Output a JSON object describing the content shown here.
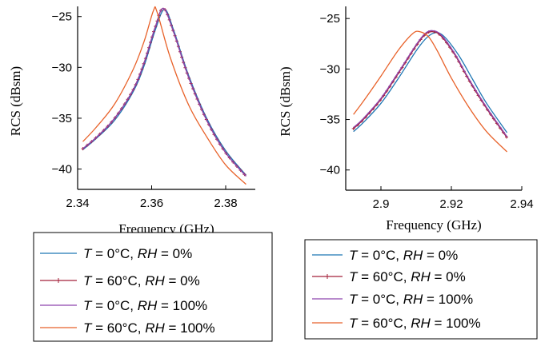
{
  "chart_data": [
    {
      "type": "line",
      "xlabel": "Frequency (GHz)",
      "ylabel": "RCS (dBsm)",
      "xlim": [
        2.34,
        2.388
      ],
      "ylim": [
        -42.0,
        -24.0
      ],
      "xticks": [
        2.34,
        2.36,
        2.38
      ],
      "xtick_labels": [
        "2.34",
        "2.36",
        "2.38"
      ],
      "yticks": [
        -40,
        -35,
        -30,
        -25
      ],
      "ytick_labels": [
        "−40",
        "−35",
        "−30",
        "−25"
      ],
      "grid": false,
      "legend_position": "below",
      "series": [
        {
          "name": "T = 0°C, RH = 0%",
          "color": "#1f77b4",
          "marker": "none",
          "x": [
            2.3414,
            2.345,
            2.35,
            2.355,
            2.358,
            2.361,
            2.3635,
            2.366,
            2.37,
            2.375,
            2.38,
            2.3855
          ],
          "y": [
            -38.1,
            -37.0,
            -35.2,
            -32.4,
            -29.8,
            -26.3,
            -24.3,
            -26.4,
            -30.8,
            -35.1,
            -38.2,
            -40.6
          ]
        },
        {
          "name": "T = 60°C, RH = 0%",
          "color": "#a3203a",
          "marker": "plus",
          "x": [
            2.3414,
            2.345,
            2.35,
            2.355,
            2.358,
            2.361,
            2.3632,
            2.366,
            2.37,
            2.375,
            2.38,
            2.3855
          ],
          "y": [
            -38.0,
            -36.9,
            -35.0,
            -32.2,
            -29.5,
            -26.0,
            -24.2,
            -26.6,
            -31.0,
            -35.3,
            -38.4,
            -40.7
          ]
        },
        {
          "name": "T = 0°C, RH = 100%",
          "color": "#8e44ad",
          "marker": "none",
          "x": [
            2.3414,
            2.345,
            2.35,
            2.355,
            2.358,
            2.361,
            2.3632,
            2.366,
            2.37,
            2.375,
            2.38,
            2.3855
          ],
          "y": [
            -38.0,
            -36.9,
            -35.0,
            -32.2,
            -29.5,
            -26.0,
            -24.2,
            -26.6,
            -31.0,
            -35.3,
            -38.4,
            -40.7
          ]
        },
        {
          "name": "T = 60°C, RH = 100%",
          "color": "#e8622a",
          "marker": "none",
          "x": [
            2.3414,
            2.345,
            2.35,
            2.355,
            2.358,
            2.3605,
            2.3615,
            2.365,
            2.37,
            2.375,
            2.38,
            2.3855
          ],
          "y": [
            -37.3,
            -35.9,
            -33.6,
            -30.2,
            -27.4,
            -24.4,
            -24.6,
            -29.0,
            -33.7,
            -36.9,
            -39.6,
            -41.5
          ]
        }
      ]
    },
    {
      "type": "line",
      "xlabel": "Frequency (GHz)",
      "ylabel": "RCS (dBsm)",
      "xlim": [
        2.89,
        2.94
      ],
      "ylim": [
        -42.0,
        -23.8
      ],
      "xticks": [
        2.9,
        2.92,
        2.94
      ],
      "xtick_labels": [
        "2.9",
        "2.92",
        "2.94"
      ],
      "yticks": [
        -40,
        -35,
        -30,
        -25
      ],
      "ytick_labels": [
        "−40",
        "−35",
        "−30",
        "−25"
      ],
      "grid": false,
      "legend_position": "below",
      "series": [
        {
          "name": "T = 0°C, RH = 0%",
          "color": "#1f77b4",
          "marker": "none",
          "x": [
            2.8922,
            2.895,
            2.9,
            2.905,
            2.91,
            2.913,
            2.9155,
            2.918,
            2.922,
            2.926,
            2.93,
            2.9358
          ],
          "y": [
            -36.2,
            -35.3,
            -33.4,
            -30.9,
            -28.2,
            -26.9,
            -26.4,
            -26.8,
            -28.6,
            -31.0,
            -33.4,
            -36.3
          ]
        },
        {
          "name": "T = 60°C, RH = 0%",
          "color": "#a3203a",
          "marker": "plus",
          "x": [
            2.8922,
            2.895,
            2.9,
            2.905,
            2.91,
            2.9125,
            2.9145,
            2.917,
            2.921,
            2.925,
            2.93,
            2.9358
          ],
          "y": [
            -35.9,
            -35.0,
            -33.0,
            -30.4,
            -27.7,
            -26.6,
            -26.3,
            -26.7,
            -28.6,
            -31.1,
            -33.9,
            -36.8
          ]
        },
        {
          "name": "T = 0°C, RH = 100%",
          "color": "#8e44ad",
          "marker": "none",
          "x": [
            2.8922,
            2.895,
            2.9,
            2.905,
            2.91,
            2.9125,
            2.9145,
            2.917,
            2.921,
            2.925,
            2.93,
            2.9358
          ],
          "y": [
            -35.8,
            -34.9,
            -32.9,
            -30.3,
            -27.6,
            -26.5,
            -26.2,
            -26.6,
            -28.5,
            -31.0,
            -33.8,
            -36.7
          ]
        },
        {
          "name": "T = 60°C, RH = 100%",
          "color": "#e8622a",
          "marker": "none",
          "x": [
            2.8922,
            2.895,
            2.9,
            2.905,
            2.909,
            2.911,
            2.9135,
            2.916,
            2.92,
            2.925,
            2.93,
            2.9358
          ],
          "y": [
            -34.5,
            -33.2,
            -30.7,
            -28.1,
            -26.5,
            -26.3,
            -26.8,
            -28.2,
            -30.9,
            -33.8,
            -36.2,
            -38.2
          ]
        }
      ]
    }
  ]
}
